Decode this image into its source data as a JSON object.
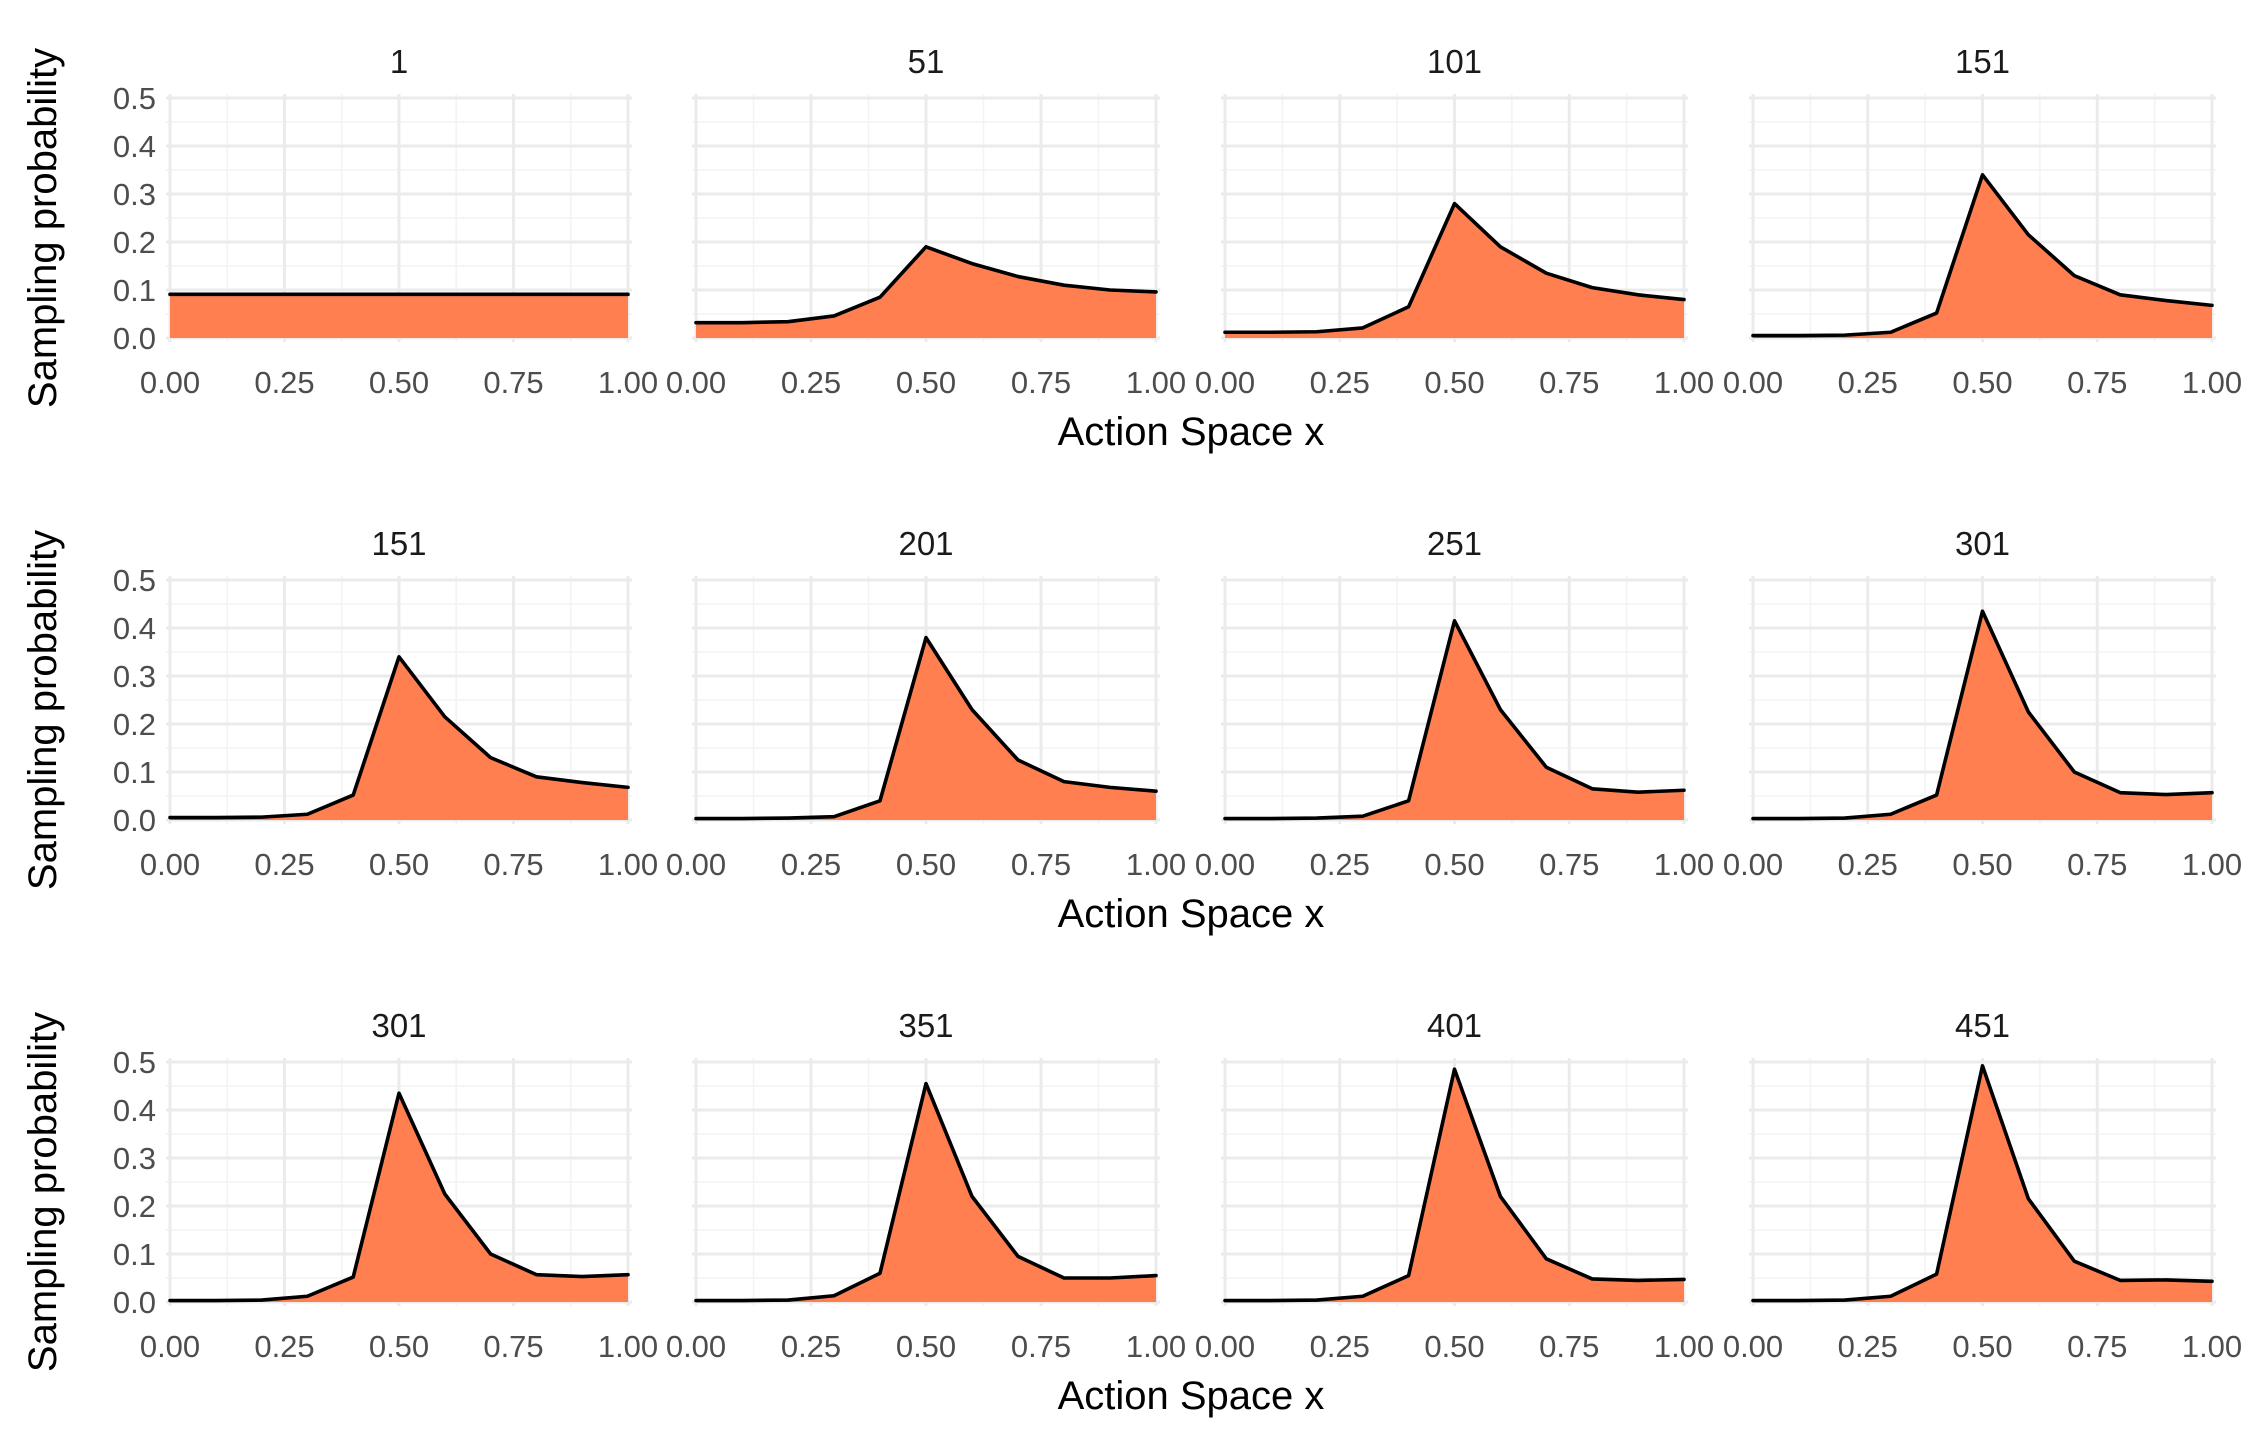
{
  "figure": {
    "fill_color": "#ff7f50",
    "line_color": "#000000",
    "ylabel": "Sampling probability",
    "xlabel": "Action Space x"
  },
  "chart_data": [
    {
      "type": "area",
      "title": "1",
      "xlabel": "Action Space x",
      "ylabel": "Sampling probability",
      "xlim": [
        0,
        1
      ],
      "ylim": [
        0,
        0.5
      ],
      "x": [
        0.0,
        0.1,
        0.2,
        0.3,
        0.4,
        0.5,
        0.6,
        0.7,
        0.8,
        0.9,
        1.0
      ],
      "y": [
        0.091,
        0.091,
        0.091,
        0.091,
        0.091,
        0.091,
        0.091,
        0.091,
        0.091,
        0.091,
        0.091
      ]
    },
    {
      "type": "area",
      "title": "51",
      "xlabel": "Action Space x",
      "ylabel": "Sampling probability",
      "xlim": [
        0,
        1
      ],
      "ylim": [
        0,
        0.5
      ],
      "x": [
        0.0,
        0.1,
        0.2,
        0.3,
        0.4,
        0.5,
        0.6,
        0.7,
        0.8,
        0.9,
        1.0
      ],
      "y": [
        0.032,
        0.032,
        0.034,
        0.046,
        0.085,
        0.19,
        0.155,
        0.128,
        0.11,
        0.1,
        0.096
      ]
    },
    {
      "type": "area",
      "title": "101",
      "xlabel": "Action Space x",
      "ylabel": "Sampling probability",
      "xlim": [
        0,
        1
      ],
      "ylim": [
        0,
        0.5
      ],
      "x": [
        0.0,
        0.1,
        0.2,
        0.3,
        0.4,
        0.5,
        0.6,
        0.7,
        0.8,
        0.9,
        1.0
      ],
      "y": [
        0.012,
        0.012,
        0.013,
        0.021,
        0.065,
        0.28,
        0.19,
        0.135,
        0.105,
        0.09,
        0.08
      ]
    },
    {
      "type": "area",
      "title": "151",
      "xlabel": "Action Space x",
      "ylabel": "Sampling probability",
      "xlim": [
        0,
        1
      ],
      "ylim": [
        0,
        0.5
      ],
      "x": [
        0.0,
        0.1,
        0.2,
        0.3,
        0.4,
        0.5,
        0.6,
        0.7,
        0.8,
        0.9,
        1.0
      ],
      "y": [
        0.005,
        0.005,
        0.006,
        0.012,
        0.052,
        0.34,
        0.215,
        0.13,
        0.09,
        0.078,
        0.068
      ]
    },
    {
      "type": "area",
      "title": "151",
      "xlabel": "Action Space x",
      "ylabel": "Sampling probability",
      "xlim": [
        0,
        1
      ],
      "ylim": [
        0,
        0.5
      ],
      "x": [
        0.0,
        0.1,
        0.2,
        0.3,
        0.4,
        0.5,
        0.6,
        0.7,
        0.8,
        0.9,
        1.0
      ],
      "y": [
        0.005,
        0.005,
        0.006,
        0.012,
        0.052,
        0.34,
        0.215,
        0.13,
        0.09,
        0.078,
        0.068
      ]
    },
    {
      "type": "area",
      "title": "201",
      "xlabel": "Action Space x",
      "ylabel": "Sampling probability",
      "xlim": [
        0,
        1
      ],
      "ylim": [
        0,
        0.5
      ],
      "x": [
        0.0,
        0.1,
        0.2,
        0.3,
        0.4,
        0.5,
        0.6,
        0.7,
        0.8,
        0.9,
        1.0
      ],
      "y": [
        0.003,
        0.003,
        0.004,
        0.007,
        0.04,
        0.38,
        0.23,
        0.125,
        0.08,
        0.068,
        0.06
      ]
    },
    {
      "type": "area",
      "title": "251",
      "xlabel": "Action Space x",
      "ylabel": "Sampling probability",
      "xlim": [
        0,
        1
      ],
      "ylim": [
        0,
        0.5
      ],
      "x": [
        0.0,
        0.1,
        0.2,
        0.3,
        0.4,
        0.5,
        0.6,
        0.7,
        0.8,
        0.9,
        1.0
      ],
      "y": [
        0.003,
        0.003,
        0.004,
        0.008,
        0.04,
        0.415,
        0.23,
        0.11,
        0.065,
        0.058,
        0.062
      ]
    },
    {
      "type": "area",
      "title": "301",
      "xlabel": "Action Space x",
      "ylabel": "Sampling probability",
      "xlim": [
        0,
        1
      ],
      "ylim": [
        0,
        0.5
      ],
      "x": [
        0.0,
        0.1,
        0.2,
        0.3,
        0.4,
        0.5,
        0.6,
        0.7,
        0.8,
        0.9,
        1.0
      ],
      "y": [
        0.003,
        0.003,
        0.004,
        0.012,
        0.052,
        0.435,
        0.225,
        0.1,
        0.057,
        0.053,
        0.057
      ]
    },
    {
      "type": "area",
      "title": "301",
      "xlabel": "Action Space x",
      "ylabel": "Sampling probability",
      "xlim": [
        0,
        1
      ],
      "ylim": [
        0,
        0.5
      ],
      "x": [
        0.0,
        0.1,
        0.2,
        0.3,
        0.4,
        0.5,
        0.6,
        0.7,
        0.8,
        0.9,
        1.0
      ],
      "y": [
        0.003,
        0.003,
        0.004,
        0.012,
        0.052,
        0.435,
        0.225,
        0.1,
        0.057,
        0.053,
        0.057
      ]
    },
    {
      "type": "area",
      "title": "351",
      "xlabel": "Action Space x",
      "ylabel": "Sampling probability",
      "xlim": [
        0,
        1
      ],
      "ylim": [
        0,
        0.5
      ],
      "x": [
        0.0,
        0.1,
        0.2,
        0.3,
        0.4,
        0.5,
        0.6,
        0.7,
        0.8,
        0.9,
        1.0
      ],
      "y": [
        0.003,
        0.003,
        0.004,
        0.013,
        0.06,
        0.455,
        0.22,
        0.095,
        0.05,
        0.05,
        0.055
      ]
    },
    {
      "type": "area",
      "title": "401",
      "xlabel": "Action Space x",
      "ylabel": "Sampling probability",
      "xlim": [
        0,
        1
      ],
      "ylim": [
        0,
        0.5
      ],
      "x": [
        0.0,
        0.1,
        0.2,
        0.3,
        0.4,
        0.5,
        0.6,
        0.7,
        0.8,
        0.9,
        1.0
      ],
      "y": [
        0.003,
        0.003,
        0.004,
        0.012,
        0.055,
        0.485,
        0.22,
        0.09,
        0.048,
        0.045,
        0.047
      ]
    },
    {
      "type": "area",
      "title": "451",
      "xlabel": "Action Space x",
      "ylabel": "Sampling probability",
      "xlim": [
        0,
        1
      ],
      "ylim": [
        0,
        0.5
      ],
      "x": [
        0.0,
        0.1,
        0.2,
        0.3,
        0.4,
        0.5,
        0.6,
        0.7,
        0.8,
        0.9,
        1.0
      ],
      "y": [
        0.003,
        0.003,
        0.004,
        0.012,
        0.058,
        0.492,
        0.215,
        0.085,
        0.045,
        0.046,
        0.043
      ]
    }
  ]
}
